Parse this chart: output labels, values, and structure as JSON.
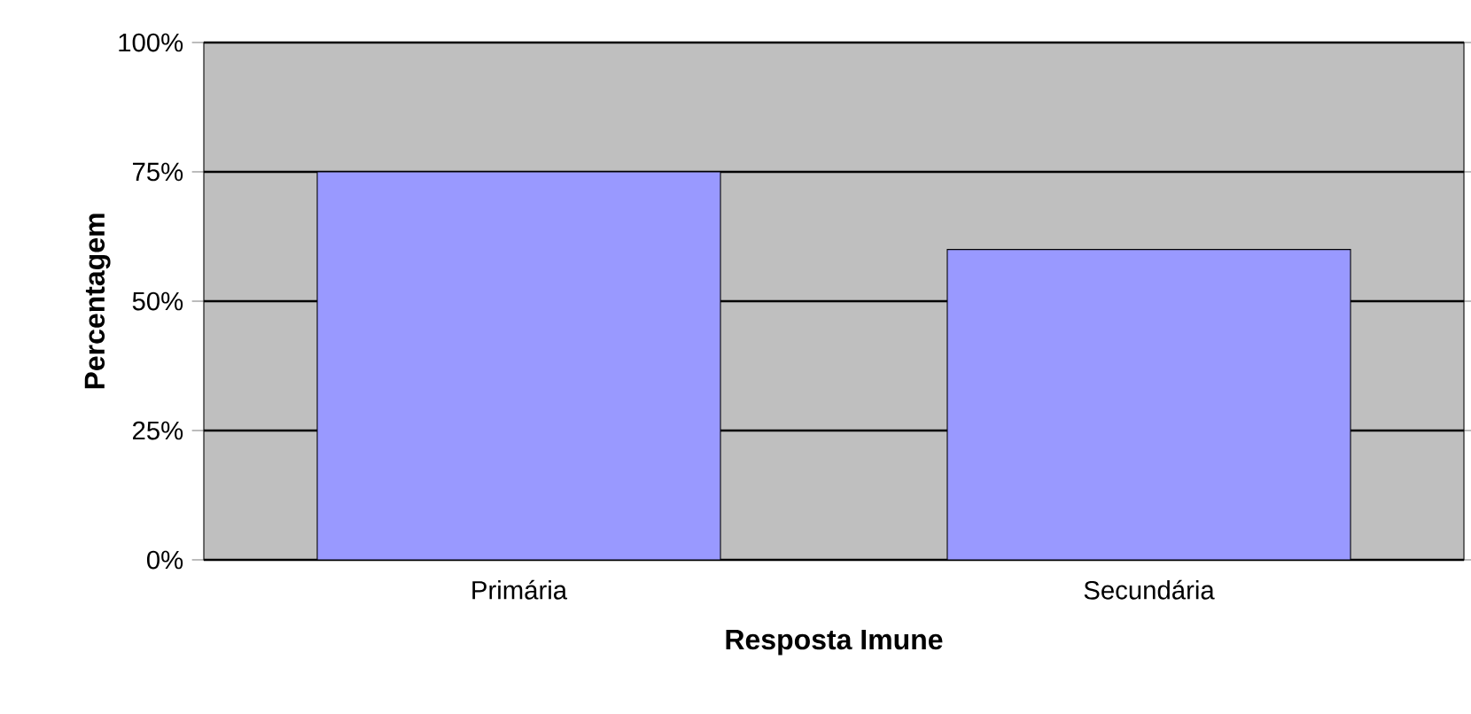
{
  "chart_data": {
    "type": "bar",
    "xlabel": "Resposta Imune",
    "ylabel": "Percentagem",
    "categories": [
      "Primária",
      "Secundária"
    ],
    "values": [
      75,
      60
    ],
    "color": "#9999ff",
    "ylim": [
      0,
      100
    ],
    "yticks": [
      {
        "value": 0,
        "label": "0%"
      },
      {
        "value": 25,
        "label": "25%"
      },
      {
        "value": 50,
        "label": "50%"
      },
      {
        "value": 75,
        "label": "75%"
      },
      {
        "value": 100,
        "label": "100%"
      }
    ],
    "grid": "y"
  }
}
